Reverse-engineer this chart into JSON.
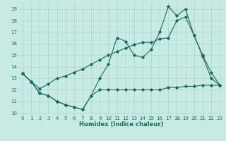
{
  "xlabel": "Humidex (Indice chaleur)",
  "xlim": [
    -0.5,
    23.5
  ],
  "ylim": [
    9.8,
    19.6
  ],
  "yticks": [
    10,
    11,
    12,
    13,
    14,
    15,
    16,
    17,
    18,
    19
  ],
  "xticks": [
    0,
    1,
    2,
    3,
    4,
    5,
    6,
    7,
    8,
    9,
    10,
    11,
    12,
    13,
    14,
    15,
    16,
    17,
    18,
    19,
    20,
    21,
    22,
    23
  ],
  "bg_color": "#c8eae4",
  "line_color": "#1a6b5a",
  "grid_color": "#a8d8d0",
  "lines": [
    {
      "x": [
        0,
        1,
        2,
        3,
        4,
        5,
        6,
        7,
        8,
        9,
        10,
        11,
        12,
        13,
        14,
        15,
        16,
        17,
        18,
        19,
        20,
        21,
        22,
        23
      ],
      "y": [
        13.4,
        12.7,
        11.7,
        11.5,
        11.0,
        10.7,
        10.5,
        10.3,
        11.5,
        12.0,
        12.0,
        12.0,
        12.0,
        12.0,
        12.0,
        12.0,
        12.0,
        12.2,
        12.2,
        12.3,
        12.3,
        12.4,
        12.4,
        12.4
      ]
    },
    {
      "x": [
        0,
        1,
        2,
        3,
        4,
        5,
        6,
        7,
        8,
        9,
        10,
        11,
        12,
        13,
        14,
        15,
        16,
        17,
        18,
        19,
        20,
        21,
        22,
        23
      ],
      "y": [
        13.4,
        12.7,
        11.7,
        11.5,
        11.0,
        10.7,
        10.5,
        10.3,
        11.5,
        13.0,
        14.2,
        16.5,
        16.2,
        15.0,
        14.8,
        15.5,
        17.0,
        19.2,
        18.4,
        19.0,
        16.7,
        14.9,
        13.0,
        12.4
      ]
    },
    {
      "x": [
        0,
        1,
        2,
        3,
        4,
        5,
        6,
        7,
        8,
        9,
        10,
        11,
        12,
        13,
        14,
        15,
        16,
        17,
        18,
        19,
        20,
        21,
        22,
        23
      ],
      "y": [
        13.4,
        12.7,
        12.1,
        12.5,
        13.0,
        13.2,
        13.5,
        13.8,
        14.2,
        14.6,
        15.0,
        15.3,
        15.6,
        15.9,
        16.1,
        16.1,
        16.4,
        16.5,
        18.0,
        18.3,
        16.7,
        15.0,
        13.5,
        12.4
      ]
    }
  ]
}
